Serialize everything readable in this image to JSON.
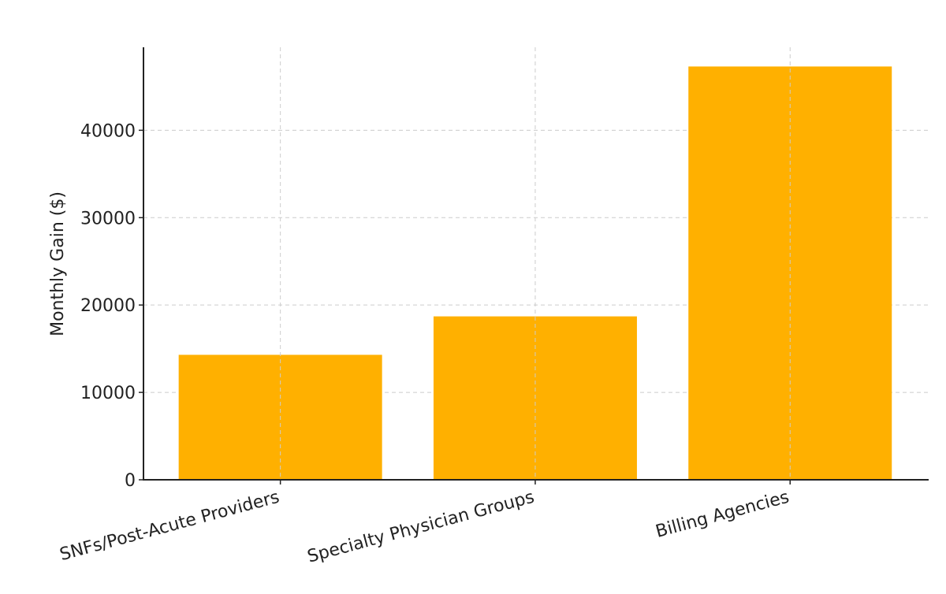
{
  "chart_data": {
    "type": "bar",
    "title": "",
    "xlabel": "",
    "ylabel": "Monthly Gain ($)",
    "categories": [
      "SNFs/Post-Acute Providers",
      "Specialty Physician Groups",
      "Billing Agencies"
    ],
    "values": [
      14300,
      18700,
      47300
    ],
    "ylim": [
      0,
      49500
    ],
    "yticks": [
      0,
      10000,
      20000,
      30000,
      40000
    ],
    "ytick_labels": [
      "0",
      "10000",
      "20000",
      "30000",
      "40000"
    ],
    "grid": true,
    "bar_color": "#FFB000"
  }
}
